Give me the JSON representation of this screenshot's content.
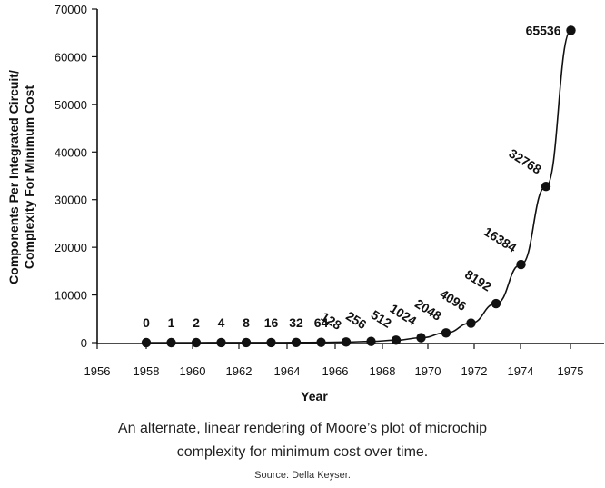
{
  "chart_data": {
    "type": "line",
    "xlabel": "Year",
    "ylabel_line1": "Components Per Integrated Circuit/",
    "ylabel_line2": "Complexity For Minimum Cost",
    "x_tick_labels": [
      "1956",
      "1958",
      "1960",
      "1962",
      "1964",
      "1966",
      "1968",
      "1970",
      "1972",
      "1974",
      "1975"
    ],
    "y_ticks": [
      0,
      10000,
      20000,
      30000,
      40000,
      50000,
      60000,
      70000
    ],
    "y_tick_labels": [
      "0",
      "10000",
      "20000",
      "30000",
      "40000",
      "50000",
      "60000",
      "70000"
    ],
    "ylim": [
      0,
      70000
    ],
    "grid": false,
    "series": [
      {
        "points": [
          {
            "x": 1958,
            "y": 0,
            "label": "0"
          },
          {
            "x": 1959,
            "y": 1,
            "label": "1"
          },
          {
            "x": 1960,
            "y": 2,
            "label": "2"
          },
          {
            "x": 1961,
            "y": 4,
            "label": "4"
          },
          {
            "x": 1962,
            "y": 8,
            "label": "8"
          },
          {
            "x": 1963,
            "y": 16,
            "label": "16"
          },
          {
            "x": 1964,
            "y": 32,
            "label": "32"
          },
          {
            "x": 1965,
            "y": 64,
            "label": "64"
          },
          {
            "x": 1966,
            "y": 128,
            "label": "128"
          },
          {
            "x": 1967,
            "y": 256,
            "label": "256"
          },
          {
            "x": 1968,
            "y": 512,
            "label": "512"
          },
          {
            "x": 1969,
            "y": 1024,
            "label": "1024"
          },
          {
            "x": 1970,
            "y": 2048,
            "label": "2048"
          },
          {
            "x": 1971,
            "y": 4096,
            "label": "4096"
          },
          {
            "x": 1972,
            "y": 8192,
            "label": "8192"
          },
          {
            "x": 1973,
            "y": 16384,
            "label": "16384"
          },
          {
            "x": 1974,
            "y": 32768,
            "label": "32768"
          },
          {
            "x": 1975,
            "y": 65536,
            "label": "65536"
          }
        ]
      }
    ]
  },
  "caption": {
    "line1": "An alternate, linear rendering of Moore’s plot of microchip",
    "line2": "complexity for minimum cost over time.",
    "source": "Source: Della Keyser."
  },
  "colors": {
    "ink": "#111111",
    "background": "#ffffff"
  }
}
